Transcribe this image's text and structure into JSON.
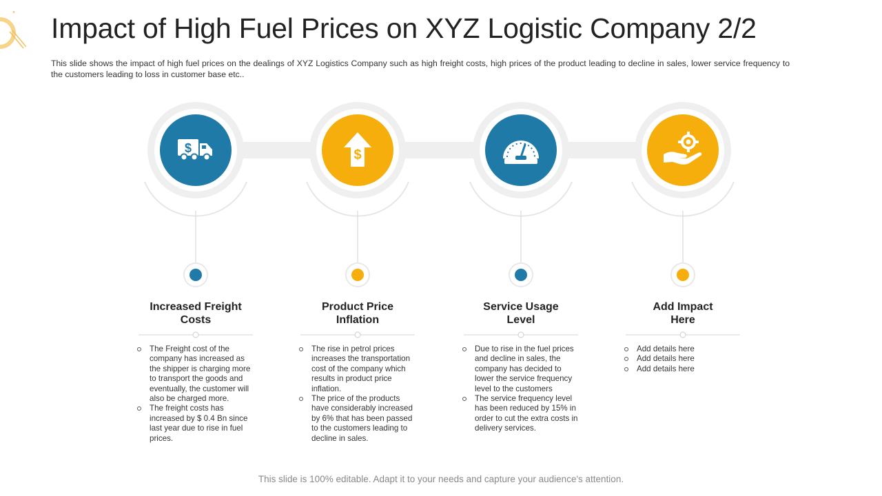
{
  "slide": {
    "title": "Impact of High Fuel Prices on XYZ Logistic Company 2/2",
    "subtitle": "This slide shows the impact of high fuel prices on the dealings of XYZ  Logistics Company  such as high freight costs, high prices of the product leading to decline in sales, lower service frequency  to the customers leading  to loss in customer base etc..",
    "footer": "This slide is 100% editable. Adapt it to your needs and capture your audience's attention."
  },
  "colors": {
    "blue": "#1F7AA8",
    "yellow": "#F6AE0D",
    "band": "#EFEFEF"
  },
  "items": [
    {
      "icon": "truck-dollar-icon",
      "color": "blue",
      "title": "Increased Freight\nCosts",
      "bullets": [
        "The Freight cost of the company has increased as the shipper is charging more to transport the goods and eventually, the customer will also be charged more.",
        "The freight costs has increased by $ 0.4 Bn since last year due to rise in fuel prices."
      ]
    },
    {
      "icon": "price-up-arrow-icon",
      "color": "yellow",
      "title": "Product Price\nInflation",
      "bullets": [
        "The rise in petrol prices increases the transportation cost of the company which results in product price inflation.",
        "The price of the products have considerably increased by 6% that has been passed to the customers leading to decline in sales."
      ]
    },
    {
      "icon": "gauge-icon",
      "color": "blue",
      "title": "Service Usage\nLevel",
      "bullets": [
        "Due to rise in the fuel prices and decline in sales, the company has decided to lower the service frequency level to the customers",
        "The service frequency level has been reduced by 15% in order to cut the extra costs in delivery services."
      ]
    },
    {
      "icon": "hand-gear-icon",
      "color": "yellow",
      "title": "Add Impact\nHere",
      "bullets": [
        "Add details here",
        "Add details here",
        "Add details here"
      ]
    }
  ]
}
